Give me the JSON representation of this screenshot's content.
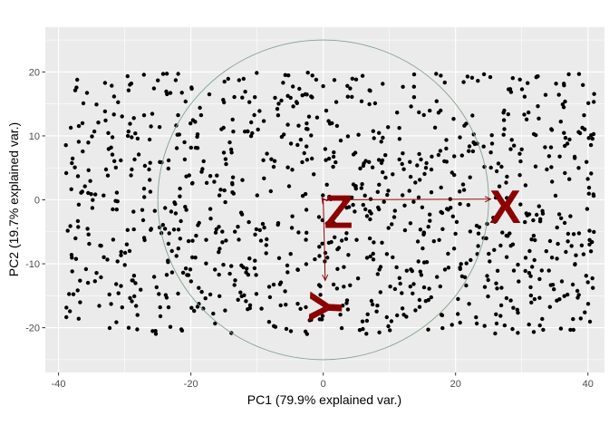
{
  "chart_data": {
    "type": "scatter",
    "xlabel": "PC1 (79.9% explained var.)",
    "ylabel": "PC2 (19.7% explained var.)",
    "xlim": [
      -42,
      42.5
    ],
    "ylim": [
      -27,
      27
    ],
    "x_ticks": [
      -40,
      -20,
      0,
      20,
      40
    ],
    "y_ticks": [
      -20,
      -10,
      0,
      10,
      20
    ],
    "x_tick_labels": [
      "-40",
      "-20",
      "0",
      "20",
      "40"
    ],
    "y_tick_labels": [
      "-20",
      "-10",
      "0",
      "10",
      "20"
    ],
    "grid": true,
    "point_color": "#000000",
    "panel_background": "#ebebeb",
    "grid_color": "#ffffff",
    "circle": {
      "center": [
        0,
        0
      ],
      "radius": 25,
      "color": "#7fa38b"
    },
    "arrow_color": "#8b0000",
    "arrows": [
      {
        "label": "X",
        "x": 25.3,
        "y": 0.1,
        "label_x": 27.5,
        "label_y": -1.2
      },
      {
        "label": "Z",
        "x": -0.2,
        "y": 0.3,
        "label_x": 2.3,
        "label_y": -2.0
      },
      {
        "label": "Y",
        "x": 0.3,
        "y": -12.6,
        "label_x": 0.5,
        "label_y": -16.8
      }
    ],
    "points": {
      "count": 1000,
      "x_range": [
        -39,
        41
      ],
      "y_range": [
        -21,
        20
      ]
    }
  }
}
